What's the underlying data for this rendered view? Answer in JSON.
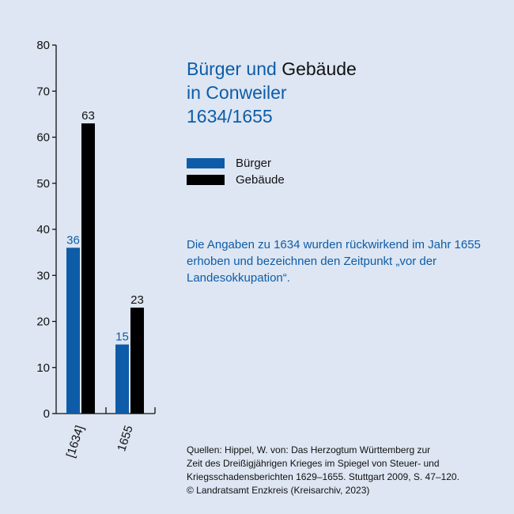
{
  "chart_data": {
    "type": "bar",
    "categories": [
      "[1634]",
      "1655"
    ],
    "series": [
      {
        "name": "Bürger",
        "values": [
          36,
          15
        ],
        "color": "#0e5ca8"
      },
      {
        "name": "Gebäude",
        "values": [
          63,
          23
        ],
        "color": "#000000"
      }
    ],
    "ylim": [
      0,
      80
    ],
    "yticks": [
      0,
      10,
      20,
      30,
      40,
      50,
      60,
      70,
      80
    ],
    "grid": false,
    "legend": "top-right"
  },
  "title": {
    "part1": "Bürger und ",
    "part2": "Gebäude",
    "line2": "in Conweiler",
    "line3": "1634/1655"
  },
  "legend": {
    "items": [
      {
        "label": "Bürger",
        "color": "#0e5ca8"
      },
      {
        "label": "Gebäude",
        "color": "#000000"
      }
    ]
  },
  "note": "Die Angaben zu 1634 wurden rückwirkend im Jahr 1655 erhoben und bezeichnen den Zeitpunkt „vor der Landesokkupation“.",
  "sources": [
    "Quellen: Hippel, W. von: Das Herzogtum Württemberg zur",
    "Zeit des Dreißigjährigen Krieges im Spiegel von Steuer- und",
    "Kriegsschadensberichten 1629–1655. Stuttgart 2009, S. 47–120.",
    "© Landratsamt Enzkreis (Kreisarchiv, 2023)"
  ]
}
